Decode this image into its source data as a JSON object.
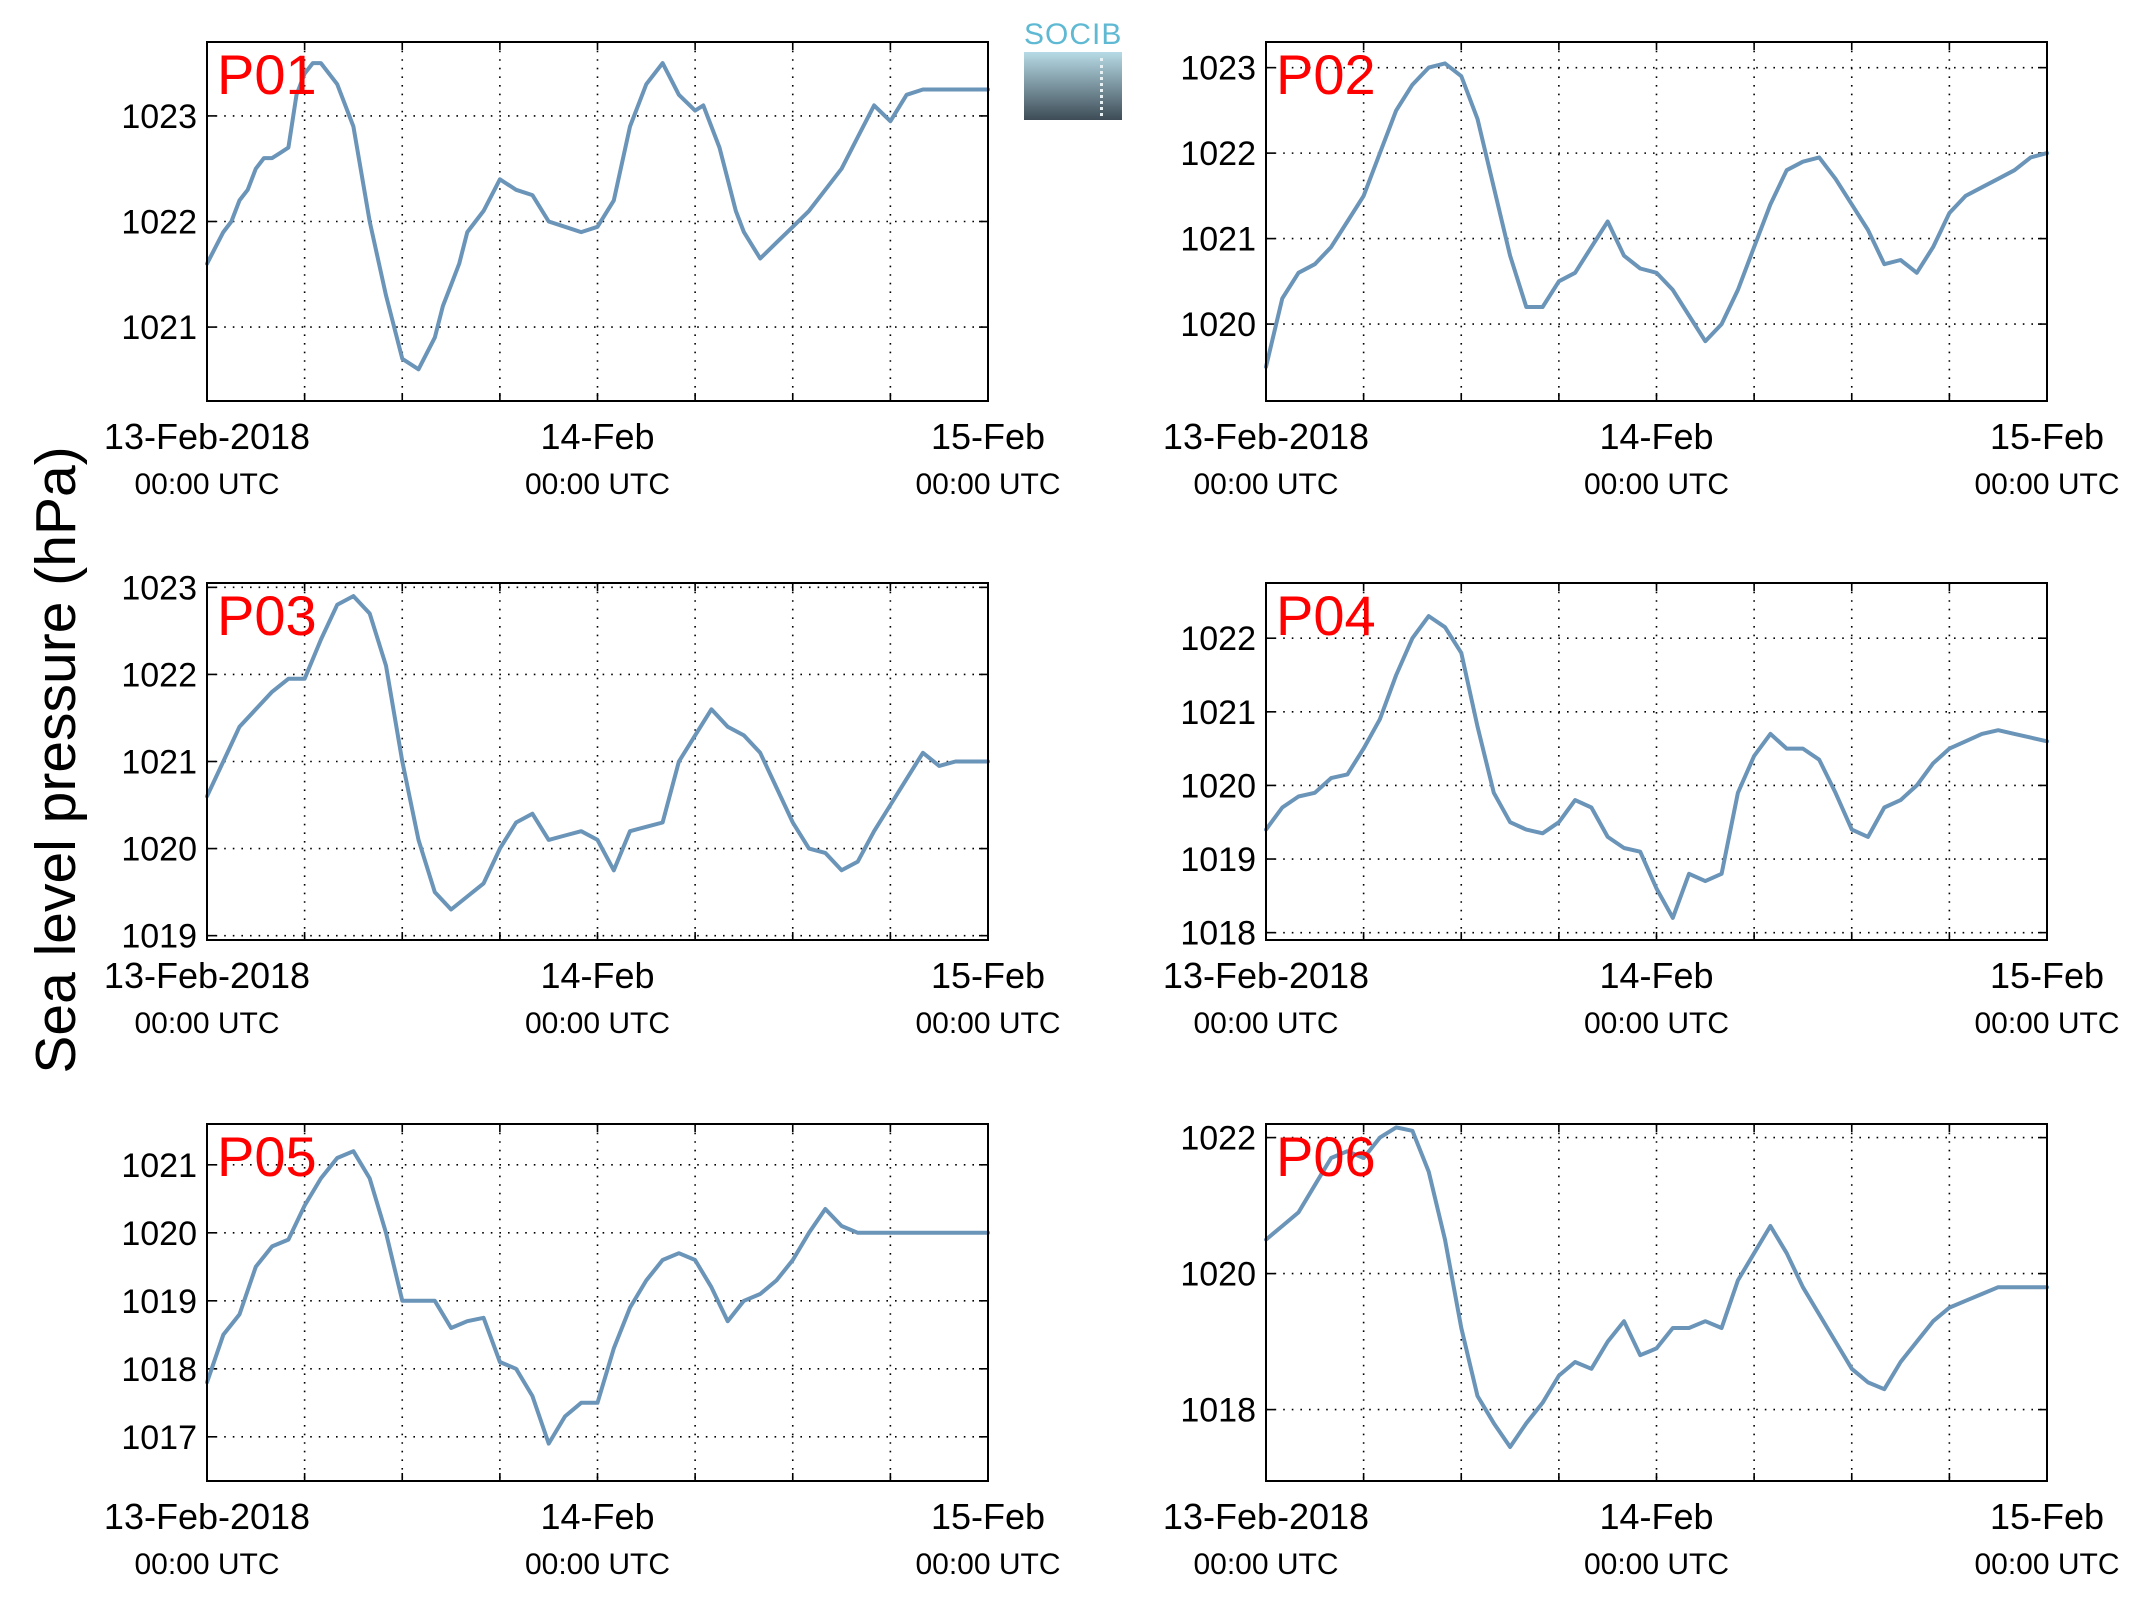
{
  "ylabel": "Sea level pressure (hPa)",
  "logo": {
    "text": "SOCIB"
  },
  "colors": {
    "line": "#6a94b8",
    "panel_label": "#ff0000",
    "grid": "#000000"
  },
  "chart_data": [
    {
      "type": "line",
      "label": "P01",
      "x_tick_labels": [
        [
          "13-Feb-2018",
          "00:00 UTC"
        ],
        [
          "14-Feb",
          "00:00 UTC"
        ],
        [
          "15-Feb",
          "00:00 UTC"
        ]
      ],
      "x_range_hours": [
        0,
        48
      ],
      "y_ticks": [
        1021,
        1022,
        1023
      ],
      "ylim": [
        1020.3,
        1023.7
      ],
      "series": [
        {
          "x": [
            0,
            1,
            1.5,
            2,
            2.5,
            3,
            3.5,
            4,
            4.5,
            5,
            5.5,
            6,
            6.5,
            7,
            8,
            9,
            10,
            11,
            12,
            13,
            14,
            14.5,
            15,
            15.5,
            16,
            17,
            18,
            19,
            20,
            21,
            22,
            23,
            24,
            25,
            26,
            27,
            28,
            29,
            30,
            30.5,
            31,
            31.5,
            32,
            32.5,
            33,
            34,
            35,
            36,
            37,
            38,
            39,
            40,
            41,
            42,
            43,
            44,
            45,
            46,
            47,
            48
          ],
          "y": [
            1021.6,
            1021.9,
            1022.0,
            1022.2,
            1022.3,
            1022.5,
            1022.6,
            1022.6,
            1022.65,
            1022.7,
            1023.2,
            1023.4,
            1023.5,
            1023.5,
            1023.3,
            1022.9,
            1022.0,
            1021.3,
            1020.7,
            1020.6,
            1020.9,
            1021.2,
            1021.4,
            1021.6,
            1021.9,
            1022.1,
            1022.4,
            1022.3,
            1022.25,
            1022.0,
            1021.95,
            1021.9,
            1021.95,
            1022.2,
            1022.9,
            1023.3,
            1023.5,
            1023.2,
            1023.05,
            1023.1,
            1022.9,
            1022.7,
            1022.4,
            1022.1,
            1021.9,
            1021.65,
            1021.8,
            1021.95,
            1022.1,
            1022.3,
            1022.5,
            1022.8,
            1023.1,
            1022.95,
            1023.2,
            1023.25,
            1023.25,
            1023.25,
            1023.25,
            1023.25
          ]
        }
      ]
    },
    {
      "type": "line",
      "label": "P02",
      "x_tick_labels": [
        [
          "13-Feb-2018",
          "00:00 UTC"
        ],
        [
          "14-Feb",
          "00:00 UTC"
        ],
        [
          "15-Feb",
          "00:00 UTC"
        ]
      ],
      "x_range_hours": [
        0,
        48
      ],
      "y_ticks": [
        1020,
        1021,
        1022,
        1023
      ],
      "ylim": [
        1019.1,
        1023.3
      ],
      "series": [
        {
          "x": [
            0,
            1,
            2,
            3,
            4,
            5,
            6,
            7,
            8,
            9,
            10,
            11,
            12,
            13,
            14,
            15,
            16,
            17,
            18,
            19,
            20,
            21,
            22,
            23,
            24,
            25,
            26,
            27,
            28,
            29,
            30,
            31,
            32,
            33,
            34,
            35,
            36,
            37,
            38,
            39,
            40,
            41,
            42,
            43,
            44,
            45,
            46,
            47,
            48
          ],
          "y": [
            1019.5,
            1020.3,
            1020.6,
            1020.7,
            1020.9,
            1021.2,
            1021.5,
            1022.0,
            1022.5,
            1022.8,
            1023.0,
            1023.05,
            1022.9,
            1022.4,
            1021.6,
            1020.8,
            1020.2,
            1020.2,
            1020.5,
            1020.6,
            1020.9,
            1021.2,
            1020.8,
            1020.65,
            1020.6,
            1020.4,
            1020.1,
            1019.8,
            1020.0,
            1020.4,
            1020.9,
            1021.4,
            1021.8,
            1021.9,
            1021.95,
            1021.7,
            1021.4,
            1021.1,
            1020.7,
            1020.75,
            1020.6,
            1020.9,
            1021.3,
            1021.5,
            1021.6,
            1021.7,
            1021.8,
            1021.95,
            1022.0
          ]
        }
      ]
    },
    {
      "type": "line",
      "label": "P03",
      "x_tick_labels": [
        [
          "13-Feb-2018",
          "00:00 UTC"
        ],
        [
          "14-Feb",
          "00:00 UTC"
        ],
        [
          "15-Feb",
          "00:00 UTC"
        ]
      ],
      "x_range_hours": [
        0,
        48
      ],
      "y_ticks": [
        1019,
        1020,
        1021,
        1022,
        1023
      ],
      "ylim": [
        1018.95,
        1023.05
      ],
      "series": [
        {
          "x": [
            0,
            1,
            2,
            3,
            4,
            5,
            6,
            7,
            8,
            9,
            10,
            11,
            12,
            13,
            14,
            15,
            16,
            17,
            18,
            19,
            20,
            21,
            22,
            23,
            24,
            25,
            26,
            27,
            28,
            29,
            30,
            31,
            32,
            33,
            34,
            35,
            36,
            37,
            38,
            39,
            40,
            41,
            42,
            43,
            44,
            45,
            46,
            47,
            48
          ],
          "y": [
            1020.6,
            1021.0,
            1021.4,
            1021.6,
            1021.8,
            1021.95,
            1021.95,
            1022.4,
            1022.8,
            1022.9,
            1022.7,
            1022.1,
            1021.0,
            1020.1,
            1019.5,
            1019.3,
            1019.45,
            1019.6,
            1020.0,
            1020.3,
            1020.4,
            1020.1,
            1020.15,
            1020.2,
            1020.1,
            1019.75,
            1020.2,
            1020.25,
            1020.3,
            1021.0,
            1021.3,
            1021.6,
            1021.4,
            1021.3,
            1021.1,
            1020.7,
            1020.3,
            1020.0,
            1019.95,
            1019.75,
            1019.85,
            1020.2,
            1020.5,
            1020.8,
            1021.1,
            1020.95,
            1021.0,
            1021.0,
            1021.0
          ]
        }
      ]
    },
    {
      "type": "line",
      "label": "P04",
      "x_tick_labels": [
        [
          "13-Feb-2018",
          "00:00 UTC"
        ],
        [
          "14-Feb",
          "00:00 UTC"
        ],
        [
          "15-Feb",
          "00:00 UTC"
        ]
      ],
      "x_range_hours": [
        0,
        48
      ],
      "y_ticks": [
        1018,
        1019,
        1020,
        1021,
        1022
      ],
      "ylim": [
        1017.9,
        1022.75
      ],
      "series": [
        {
          "x": [
            0,
            1,
            2,
            3,
            4,
            5,
            6,
            7,
            8,
            9,
            10,
            11,
            12,
            13,
            14,
            15,
            16,
            17,
            18,
            19,
            20,
            21,
            22,
            23,
            24,
            25,
            26,
            27,
            28,
            29,
            30,
            31,
            32,
            33,
            34,
            35,
            36,
            37,
            38,
            39,
            40,
            41,
            42,
            43,
            44,
            45,
            46,
            47,
            48
          ],
          "y": [
            1019.4,
            1019.7,
            1019.85,
            1019.9,
            1020.1,
            1020.15,
            1020.5,
            1020.9,
            1021.5,
            1022.0,
            1022.3,
            1022.15,
            1021.8,
            1020.8,
            1019.9,
            1019.5,
            1019.4,
            1019.35,
            1019.5,
            1019.8,
            1019.7,
            1019.3,
            1019.15,
            1019.1,
            1018.6,
            1018.2,
            1018.8,
            1018.7,
            1018.8,
            1019.9,
            1020.4,
            1020.7,
            1020.5,
            1020.5,
            1020.35,
            1019.9,
            1019.4,
            1019.3,
            1019.7,
            1019.8,
            1020.0,
            1020.3,
            1020.5,
            1020.6,
            1020.7,
            1020.75,
            1020.7,
            1020.65,
            1020.6
          ]
        }
      ]
    },
    {
      "type": "line",
      "label": "P05",
      "x_tick_labels": [
        [
          "13-Feb-2018",
          "00:00 UTC"
        ],
        [
          "14-Feb",
          "00:00 UTC"
        ],
        [
          "15-Feb",
          "00:00 UTC"
        ]
      ],
      "x_range_hours": [
        0,
        48
      ],
      "y_ticks": [
        1017,
        1018,
        1019,
        1020,
        1021
      ],
      "ylim": [
        1016.35,
        1021.6
      ],
      "series": [
        {
          "x": [
            0,
            1,
            2,
            3,
            4,
            5,
            6,
            7,
            8,
            9,
            10,
            11,
            12,
            13,
            14,
            15,
            16,
            17,
            18,
            19,
            20,
            21,
            22,
            23,
            24,
            25,
            26,
            27,
            28,
            29,
            30,
            31,
            32,
            33,
            34,
            35,
            36,
            37,
            38,
            39,
            40,
            41,
            42,
            43,
            44,
            45,
            46,
            47,
            48
          ],
          "y": [
            1017.8,
            1018.5,
            1018.8,
            1019.5,
            1019.8,
            1019.9,
            1020.4,
            1020.8,
            1021.1,
            1021.2,
            1020.8,
            1020.0,
            1019.0,
            1019.0,
            1019.0,
            1018.6,
            1018.7,
            1018.75,
            1018.1,
            1018.0,
            1017.6,
            1016.9,
            1017.3,
            1017.5,
            1017.5,
            1018.3,
            1018.9,
            1019.3,
            1019.6,
            1019.7,
            1019.6,
            1019.2,
            1018.7,
            1019.0,
            1019.1,
            1019.3,
            1019.6,
            1020.0,
            1020.35,
            1020.1,
            1020.0,
            1020.0,
            1020.0,
            1020.0,
            1020.0,
            1020.0,
            1020.0,
            1020.0,
            1020.0
          ]
        }
      ]
    },
    {
      "type": "line",
      "label": "P06",
      "x_tick_labels": [
        [
          "13-Feb-2018",
          "00:00 UTC"
        ],
        [
          "14-Feb",
          "00:00 UTC"
        ],
        [
          "15-Feb",
          "00:00 UTC"
        ]
      ],
      "x_range_hours": [
        0,
        48
      ],
      "y_ticks": [
        1018,
        1020,
        1022
      ],
      "ylim": [
        1016.95,
        1022.2
      ],
      "series": [
        {
          "x": [
            0,
            1,
            2,
            3,
            4,
            5,
            6,
            7,
            8,
            9,
            10,
            11,
            12,
            13,
            14,
            15,
            16,
            17,
            18,
            19,
            20,
            21,
            22,
            23,
            24,
            25,
            26,
            27,
            28,
            29,
            30,
            31,
            32,
            33,
            34,
            35,
            36,
            37,
            38,
            39,
            40,
            41,
            42,
            43,
            44,
            45,
            46,
            47,
            48
          ],
          "y": [
            1020.5,
            1020.7,
            1020.9,
            1021.3,
            1021.7,
            1021.8,
            1021.7,
            1022.0,
            1022.15,
            1022.1,
            1021.5,
            1020.5,
            1019.2,
            1018.2,
            1017.8,
            1017.45,
            1017.8,
            1018.1,
            1018.5,
            1018.7,
            1018.6,
            1019.0,
            1019.3,
            1018.8,
            1018.9,
            1019.2,
            1019.2,
            1019.3,
            1019.2,
            1019.9,
            1020.3,
            1020.7,
            1020.3,
            1019.8,
            1019.4,
            1019.0,
            1018.6,
            1018.4,
            1018.3,
            1018.7,
            1019.0,
            1019.3,
            1019.5,
            1019.6,
            1019.7,
            1019.8,
            1019.8,
            1019.8,
            1019.8
          ]
        }
      ]
    }
  ]
}
